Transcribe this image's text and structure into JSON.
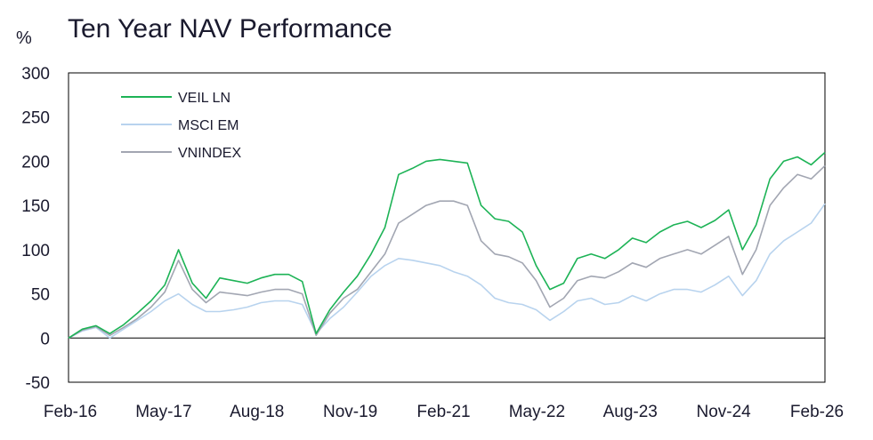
{
  "chart_data": {
    "type": "line",
    "title": "Ten Year NAV Performance",
    "ylabel": "%",
    "xlabel": "",
    "ylim": [
      -50,
      300
    ],
    "yticks": [
      300,
      250,
      200,
      150,
      100,
      50,
      0,
      -50
    ],
    "xticks": [
      "Feb-16",
      "May-17",
      "Aug-18",
      "Nov-19",
      "Feb-21",
      "May-22",
      "Aug-23",
      "Nov-24",
      "Feb-26"
    ],
    "grid": false,
    "zero_line": true,
    "legend_position": "top-left",
    "x": [
      "Feb-16",
      "Jun-16",
      "Oct-16",
      "Feb-17",
      "May-17",
      "Aug-17",
      "Nov-17",
      "Feb-18",
      "Apr-18",
      "Jun-18",
      "Aug-18",
      "Nov-18",
      "Feb-19",
      "May-19",
      "Aug-19",
      "Nov-19",
      "Jan-20",
      "Feb-20",
      "Mar-20",
      "Apr-20",
      "Jul-20",
      "Oct-20",
      "Dec-20",
      "Feb-21",
      "Apr-21",
      "Jun-21",
      "Aug-21",
      "Oct-21",
      "Dec-21",
      "Feb-22",
      "Apr-22",
      "May-22",
      "Jun-22",
      "Jul-22",
      "Sep-22",
      "Nov-22",
      "Dec-22",
      "Jan-23",
      "Mar-23",
      "May-23",
      "Aug-23",
      "Oct-23",
      "Dec-23",
      "Feb-24",
      "Apr-24",
      "Jun-24",
      "Aug-24",
      "Nov-24",
      "Jan-25",
      "Feb-25",
      "Apr-25",
      "Jun-25",
      "Aug-25",
      "Oct-25",
      "Dec-25",
      "Feb-26"
    ],
    "series": [
      {
        "name": "VEIL LN",
        "color": "#1db356",
        "values": [
          0,
          10,
          14,
          5,
          15,
          28,
          42,
          60,
          100,
          62,
          45,
          68,
          65,
          62,
          68,
          72,
          72,
          64,
          5,
          32,
          52,
          70,
          95,
          125,
          185,
          192,
          200,
          202,
          200,
          198,
          150,
          135,
          132,
          120,
          82,
          55,
          62,
          90,
          95,
          90,
          100,
          113,
          108,
          120,
          128,
          132,
          125,
          133,
          145,
          100,
          128,
          180,
          200,
          205,
          196,
          210
        ]
      },
      {
        "name": "MSCI EM",
        "color": "#b8d3ee",
        "values": [
          0,
          8,
          12,
          0,
          10,
          20,
          30,
          42,
          50,
          38,
          30,
          30,
          32,
          35,
          40,
          42,
          42,
          38,
          5,
          22,
          35,
          52,
          70,
          82,
          90,
          88,
          85,
          82,
          75,
          70,
          60,
          45,
          40,
          38,
          32,
          20,
          30,
          42,
          45,
          38,
          40,
          48,
          42,
          50,
          55,
          55,
          52,
          60,
          70,
          48,
          65,
          95,
          110,
          120,
          130,
          152
        ]
      },
      {
        "name": "VNINDEX",
        "color": "#a2a6b2",
        "values": [
          0,
          9,
          13,
          3,
          12,
          22,
          35,
          52,
          88,
          55,
          40,
          52,
          50,
          48,
          52,
          55,
          55,
          50,
          3,
          28,
          45,
          55,
          75,
          95,
          130,
          140,
          150,
          155,
          155,
          150,
          110,
          95,
          92,
          85,
          65,
          35,
          45,
          65,
          70,
          68,
          75,
          85,
          80,
          90,
          95,
          100,
          95,
          105,
          115,
          72,
          100,
          150,
          170,
          185,
          180,
          195
        ]
      }
    ]
  }
}
